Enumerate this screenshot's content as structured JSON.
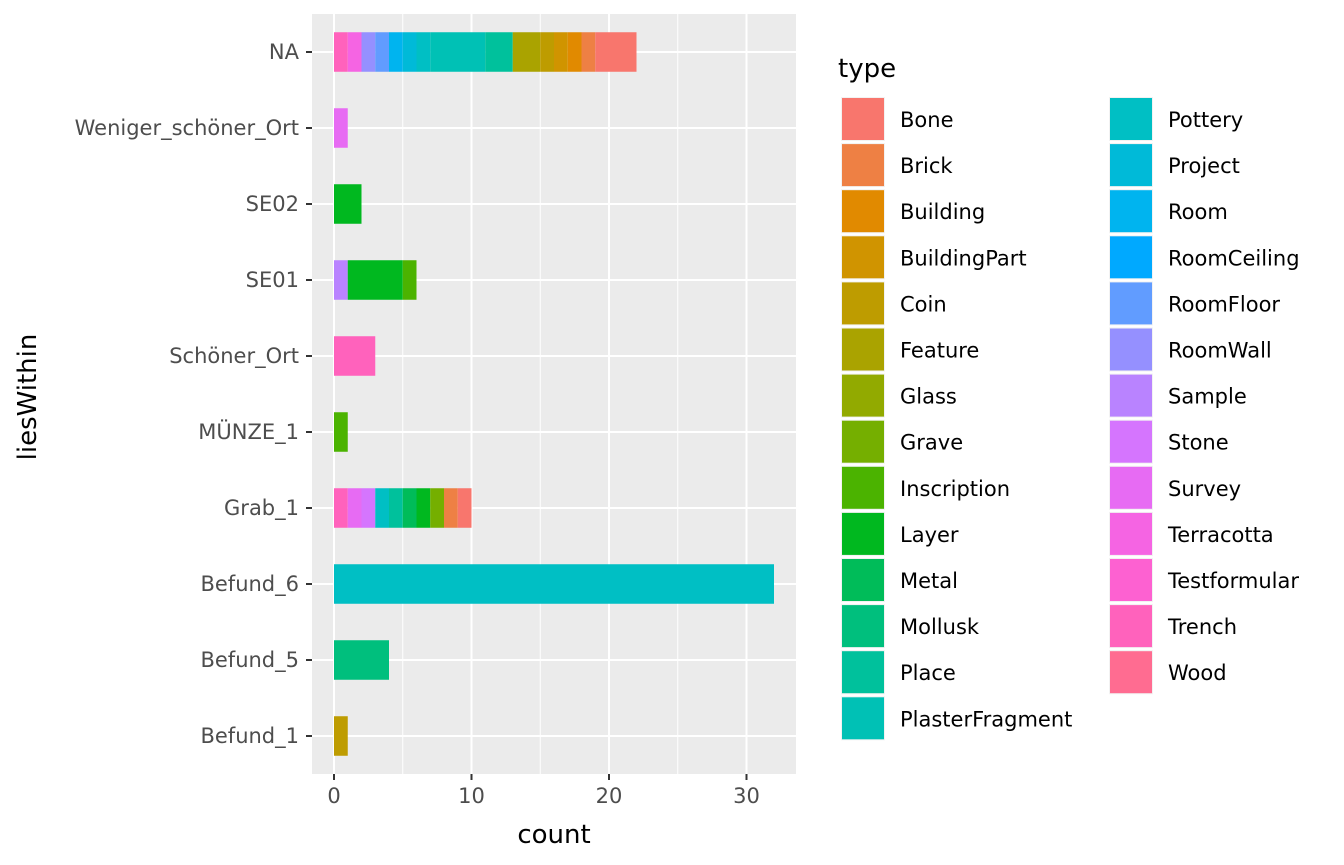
{
  "chart_data": {
    "type": "bar",
    "orientation": "horizontal",
    "stacked": true,
    "xlabel": "count",
    "ylabel": "liesWithin",
    "xlim": [
      -1.6,
      33.6
    ],
    "x_ticks": [
      0,
      10,
      20,
      30
    ],
    "grid": true,
    "legend": {
      "title": "type",
      "position": "right",
      "columns": 2
    },
    "categories": [
      "NA",
      "Weniger_schöner_Ort",
      "SE02",
      "SE01",
      "Schöner_Ort",
      "MÜNZE_1",
      "Grab_1",
      "Befund_6",
      "Befund_5",
      "Befund_1"
    ],
    "types": [
      {
        "name": "Bone",
        "color": "#F8766D"
      },
      {
        "name": "Brick",
        "color": "#EE8044"
      },
      {
        "name": "Building",
        "color": "#E18A00"
      },
      {
        "name": "BuildingPart",
        "color": "#D09400"
      },
      {
        "name": "Coin",
        "color": "#BE9C00"
      },
      {
        "name": "Feature",
        "color": "#AAA300"
      },
      {
        "name": "Glass",
        "color": "#92AA00"
      },
      {
        "name": "Grave",
        "color": "#75AF00"
      },
      {
        "name": "Inscription",
        "color": "#4BB300"
      },
      {
        "name": "Layer",
        "color": "#00B81F"
      },
      {
        "name": "Metal",
        "color": "#00BC59"
      },
      {
        "name": "Mollusk",
        "color": "#00BF7D"
      },
      {
        "name": "Place",
        "color": "#00C19C"
      },
      {
        "name": "PlasterFragment",
        "color": "#00C1B5"
      },
      {
        "name": "Pottery",
        "color": "#00BFC4"
      },
      {
        "name": "Project",
        "color": "#00BAD8"
      },
      {
        "name": "Room",
        "color": "#00B4EF"
      },
      {
        "name": "RoomCeiling",
        "color": "#00A9FF"
      },
      {
        "name": "RoomFloor",
        "color": "#619CFF"
      },
      {
        "name": "RoomWall",
        "color": "#9590FF"
      },
      {
        "name": "Sample",
        "color": "#B983FF"
      },
      {
        "name": "Stone",
        "color": "#D575FE"
      },
      {
        "name": "Survey",
        "color": "#E76BF3"
      },
      {
        "name": "Terracotta",
        "color": "#F564E3"
      },
      {
        "name": "Testformular",
        "color": "#FD61D1"
      },
      {
        "name": "Trench",
        "color": "#FF62BC"
      },
      {
        "name": "Wood",
        "color": "#FF6C91"
      }
    ],
    "stacks": {
      "NA": [
        [
          "Bone",
          3
        ],
        [
          "Brick",
          1
        ],
        [
          "Building",
          1
        ],
        [
          "BuildingPart",
          1
        ],
        [
          "Coin",
          1
        ],
        [
          "Feature",
          2
        ],
        [
          "Place",
          2
        ],
        [
          "PlasterFragment",
          4
        ],
        [
          "Pottery",
          1
        ],
        [
          "Project",
          1
        ],
        [
          "Room",
          1
        ],
        [
          "RoomFloor",
          1
        ],
        [
          "RoomWall",
          1
        ],
        [
          "Terracotta",
          1
        ],
        [
          "Trench",
          1
        ]
      ],
      "Weniger_schöner_Ort": [
        [
          "Survey",
          1
        ]
      ],
      "SE02": [
        [
          "Layer",
          2
        ]
      ],
      "SE01": [
        [
          "Inscription",
          1
        ],
        [
          "Layer",
          4
        ],
        [
          "Sample",
          1
        ]
      ],
      "Schöner_Ort": [
        [
          "Trench",
          3
        ]
      ],
      "MÜNZE_1": [
        [
          "Inscription",
          1
        ]
      ],
      "Grab_1": [
        [
          "Bone",
          1
        ],
        [
          "Brick",
          1
        ],
        [
          "Grave",
          1
        ],
        [
          "Layer",
          1
        ],
        [
          "Metal",
          1
        ],
        [
          "Place",
          1
        ],
        [
          "Pottery",
          1
        ],
        [
          "Stone",
          1
        ],
        [
          "Survey",
          1
        ],
        [
          "Trench",
          1
        ]
      ],
      "Befund_6": [
        [
          "Pottery",
          32
        ]
      ],
      "Befund_5": [
        [
          "Mollusk",
          4
        ]
      ],
      "Befund_1": [
        [
          "Coin",
          1
        ]
      ]
    }
  }
}
